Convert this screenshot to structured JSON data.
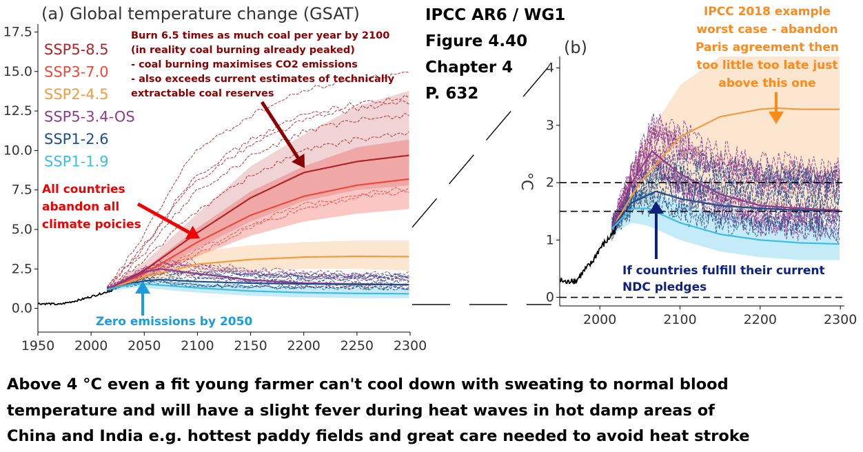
{
  "header": {
    "source_lines": [
      "IPCC AR6 / WG1",
      "Figure 4.40",
      "Chapter 4",
      "P. 632"
    ]
  },
  "chart_data": [
    {
      "panel": "a",
      "type": "line",
      "title": "(a) Global temperature change (GSAT)",
      "xlabel": "",
      "ylabel": "",
      "xlim": [
        1950,
        2300
      ],
      "ylim": [
        -1.5,
        18
      ],
      "x_ticks": [
        "1950",
        "2000",
        "2050",
        "2100",
        "2150",
        "2200",
        "2250",
        "2300"
      ],
      "y_ticks": [
        "0.0",
        "2.5",
        "5.0",
        "7.5",
        "10.0",
        "12.5",
        "15.0",
        "17.5"
      ],
      "legend_position": "top-left",
      "historical": {
        "x": [
          1950,
          1960,
          1970,
          1980,
          1990,
          2000,
          2010,
          2020
        ],
        "y": [
          0.3,
          0.3,
          0.25,
          0.4,
          0.55,
          0.75,
          0.95,
          1.15
        ]
      },
      "series": [
        {
          "name": "SSP5-8.5",
          "color": "#b2232b",
          "x": [
            2015,
            2050,
            2100,
            2150,
            2200,
            2250,
            2300
          ],
          "values": [
            1.2,
            2.4,
            4.8,
            7.0,
            8.6,
            9.3,
            9.7
          ],
          "range_low": [
            1.1,
            2.0,
            3.8,
            5.5,
            6.8,
            7.5,
            7.8
          ],
          "range_high": [
            1.4,
            2.9,
            6.0,
            9.0,
            11.0,
            12.8,
            13.8
          ]
        },
        {
          "name": "SSP3-7.0",
          "color": "#f0473b",
          "x": [
            2015,
            2050,
            2100,
            2150,
            2200,
            2250,
            2300
          ],
          "values": [
            1.2,
            2.2,
            4.2,
            5.9,
            7.1,
            7.8,
            8.2
          ],
          "range_low": [
            1.1,
            1.9,
            3.3,
            4.6,
            5.5,
            6.0,
            6.3
          ],
          "range_high": [
            1.3,
            2.5,
            5.1,
            7.4,
            9.0,
            10.2,
            10.7
          ]
        },
        {
          "name": "SSP2-4.5",
          "color": "#f69a40",
          "x": [
            2015,
            2050,
            2100,
            2150,
            2200,
            2250,
            2300
          ],
          "values": [
            1.2,
            2.0,
            2.8,
            3.1,
            3.25,
            3.3,
            3.28
          ],
          "range_low": [
            1.1,
            1.7,
            2.2,
            2.4,
            2.5,
            2.5,
            2.4
          ],
          "range_high": [
            1.3,
            2.3,
            3.6,
            4.0,
            4.2,
            4.3,
            4.3
          ]
        },
        {
          "name": "SSP5-3.4-OS",
          "color": "#8f3c8d",
          "x": [
            2015,
            2050,
            2065,
            2100,
            2150,
            2200,
            2250,
            2300
          ],
          "values": [
            1.2,
            2.3,
            2.5,
            2.2,
            1.8,
            1.6,
            1.55,
            1.5
          ],
          "range_low": [],
          "range_high": []
        },
        {
          "name": "SSP1-2.6",
          "color": "#1d4f8b",
          "x": [
            2015,
            2050,
            2065,
            2100,
            2150,
            2200,
            2250,
            2300
          ],
          "values": [
            1.2,
            1.75,
            1.82,
            1.7,
            1.6,
            1.55,
            1.52,
            1.5
          ],
          "range_low": [],
          "range_high": []
        },
        {
          "name": "SSP1-1.9",
          "color": "#3bbde6",
          "x": [
            2015,
            2040,
            2050,
            2100,
            2150,
            2200,
            2250,
            2300
          ],
          "values": [
            1.2,
            1.55,
            1.55,
            1.3,
            1.1,
            1.0,
            0.95,
            0.93
          ],
          "range_low": [
            1.1,
            1.3,
            1.3,
            1.0,
            0.8,
            0.7,
            0.65,
            0.65
          ],
          "range_high": [
            1.3,
            1.8,
            1.8,
            1.6,
            1.45,
            1.35,
            1.3,
            1.25
          ]
        }
      ],
      "annotations": {
        "coal": [
          "Burn 6.5 times as much coal per year by 2100",
          "(in reality coal burning already peaked)",
          "- coal burning maximises CO2 emissions",
          "- also exceeds current estimates of technically",
          "extractable coal reserves"
        ],
        "abandon": [
          "All countries",
          "abandon all",
          "climate poicies"
        ],
        "zero": "Zero emissions by 2050"
      },
      "colors": {
        "coal_text": "#8b0000",
        "abandon_text": "#f00000",
        "zero_text": "#1b9be0"
      }
    },
    {
      "panel": "b",
      "type": "line",
      "title": "(b)",
      "xlabel": "",
      "ylabel": "°C",
      "xlim": [
        1950,
        2305
      ],
      "ylim": [
        -0.15,
        4.2
      ],
      "x_ticks": [
        "2000",
        "2100",
        "2200",
        "2300"
      ],
      "y_ticks": [
        "0",
        "1",
        "2",
        "3",
        "4"
      ],
      "reference_lines": [
        0,
        1.5,
        2
      ],
      "historical": {
        "x": [
          1950,
          1960,
          1965,
          1970,
          1980,
          1990,
          2000,
          2010,
          2020
        ],
        "y": [
          0.3,
          0.25,
          0.32,
          0.28,
          0.45,
          0.6,
          0.85,
          1.0,
          1.2
        ]
      },
      "series": [
        {
          "name": "SSP2-4.5",
          "color": "#f69a40",
          "x": [
            2015,
            2050,
            2100,
            2150,
            2200,
            2220,
            2250,
            2300
          ],
          "values": [
            1.2,
            2.0,
            2.8,
            3.15,
            3.28,
            3.3,
            3.28,
            3.28
          ],
          "range_low": [
            1.1,
            1.6,
            1.9,
            1.7,
            1.5,
            1.5,
            1.5,
            1.5
          ],
          "range_high": [
            1.3,
            2.6,
            3.7,
            4.2,
            4.2,
            4.2,
            4.2,
            4.2
          ]
        },
        {
          "name": "SSP5-3.4-OS",
          "color": "#8f3c8d",
          "x": [
            2015,
            2040,
            2065,
            2100,
            2150,
            2200,
            2250,
            2300
          ],
          "values": [
            1.2,
            2.0,
            2.55,
            2.15,
            1.8,
            1.6,
            1.55,
            1.52
          ],
          "range_low": [],
          "range_high": []
        },
        {
          "name": "SSP1-2.6",
          "color": "#1d4f8b",
          "x": [
            2015,
            2040,
            2070,
            2100,
            2150,
            2200,
            2250,
            2300
          ],
          "values": [
            1.2,
            1.65,
            1.85,
            1.72,
            1.6,
            1.55,
            1.52,
            1.5
          ],
          "range_low": [],
          "range_high": []
        },
        {
          "name": "SSP1-1.9",
          "color": "#3bbde6",
          "x": [
            2015,
            2040,
            2060,
            2100,
            2150,
            2200,
            2250,
            2300
          ],
          "values": [
            1.2,
            1.55,
            1.55,
            1.3,
            1.1,
            1.0,
            0.95,
            0.93
          ],
          "range_low": [
            1.1,
            1.3,
            1.25,
            1.0,
            0.8,
            0.7,
            0.65,
            0.65
          ],
          "range_high": [
            1.3,
            1.8,
            1.85,
            1.65,
            1.45,
            1.35,
            1.3,
            1.25
          ]
        }
      ],
      "annotations": {
        "ipcc2018": [
          "IPCC 2018 example",
          "worst case - abandon",
          "Paris agreement then",
          "too little too late just",
          "above this one"
        ],
        "ndc": [
          "If countries fulfill their current",
          "NDC pledges"
        ]
      },
      "colors": {
        "ipcc2018_text": "#ff8a1a",
        "ndc_text": "#0d2180"
      }
    }
  ],
  "footer": {
    "lines": [
      "Above 4 °C even a fit young farmer can't cool down with sweating to normal blood",
      "temperature and will have a slight fever during heat waves in hot damp areas of",
      "China and India e.g. hottest paddy fields and great care needed to avoid heat stroke"
    ]
  }
}
